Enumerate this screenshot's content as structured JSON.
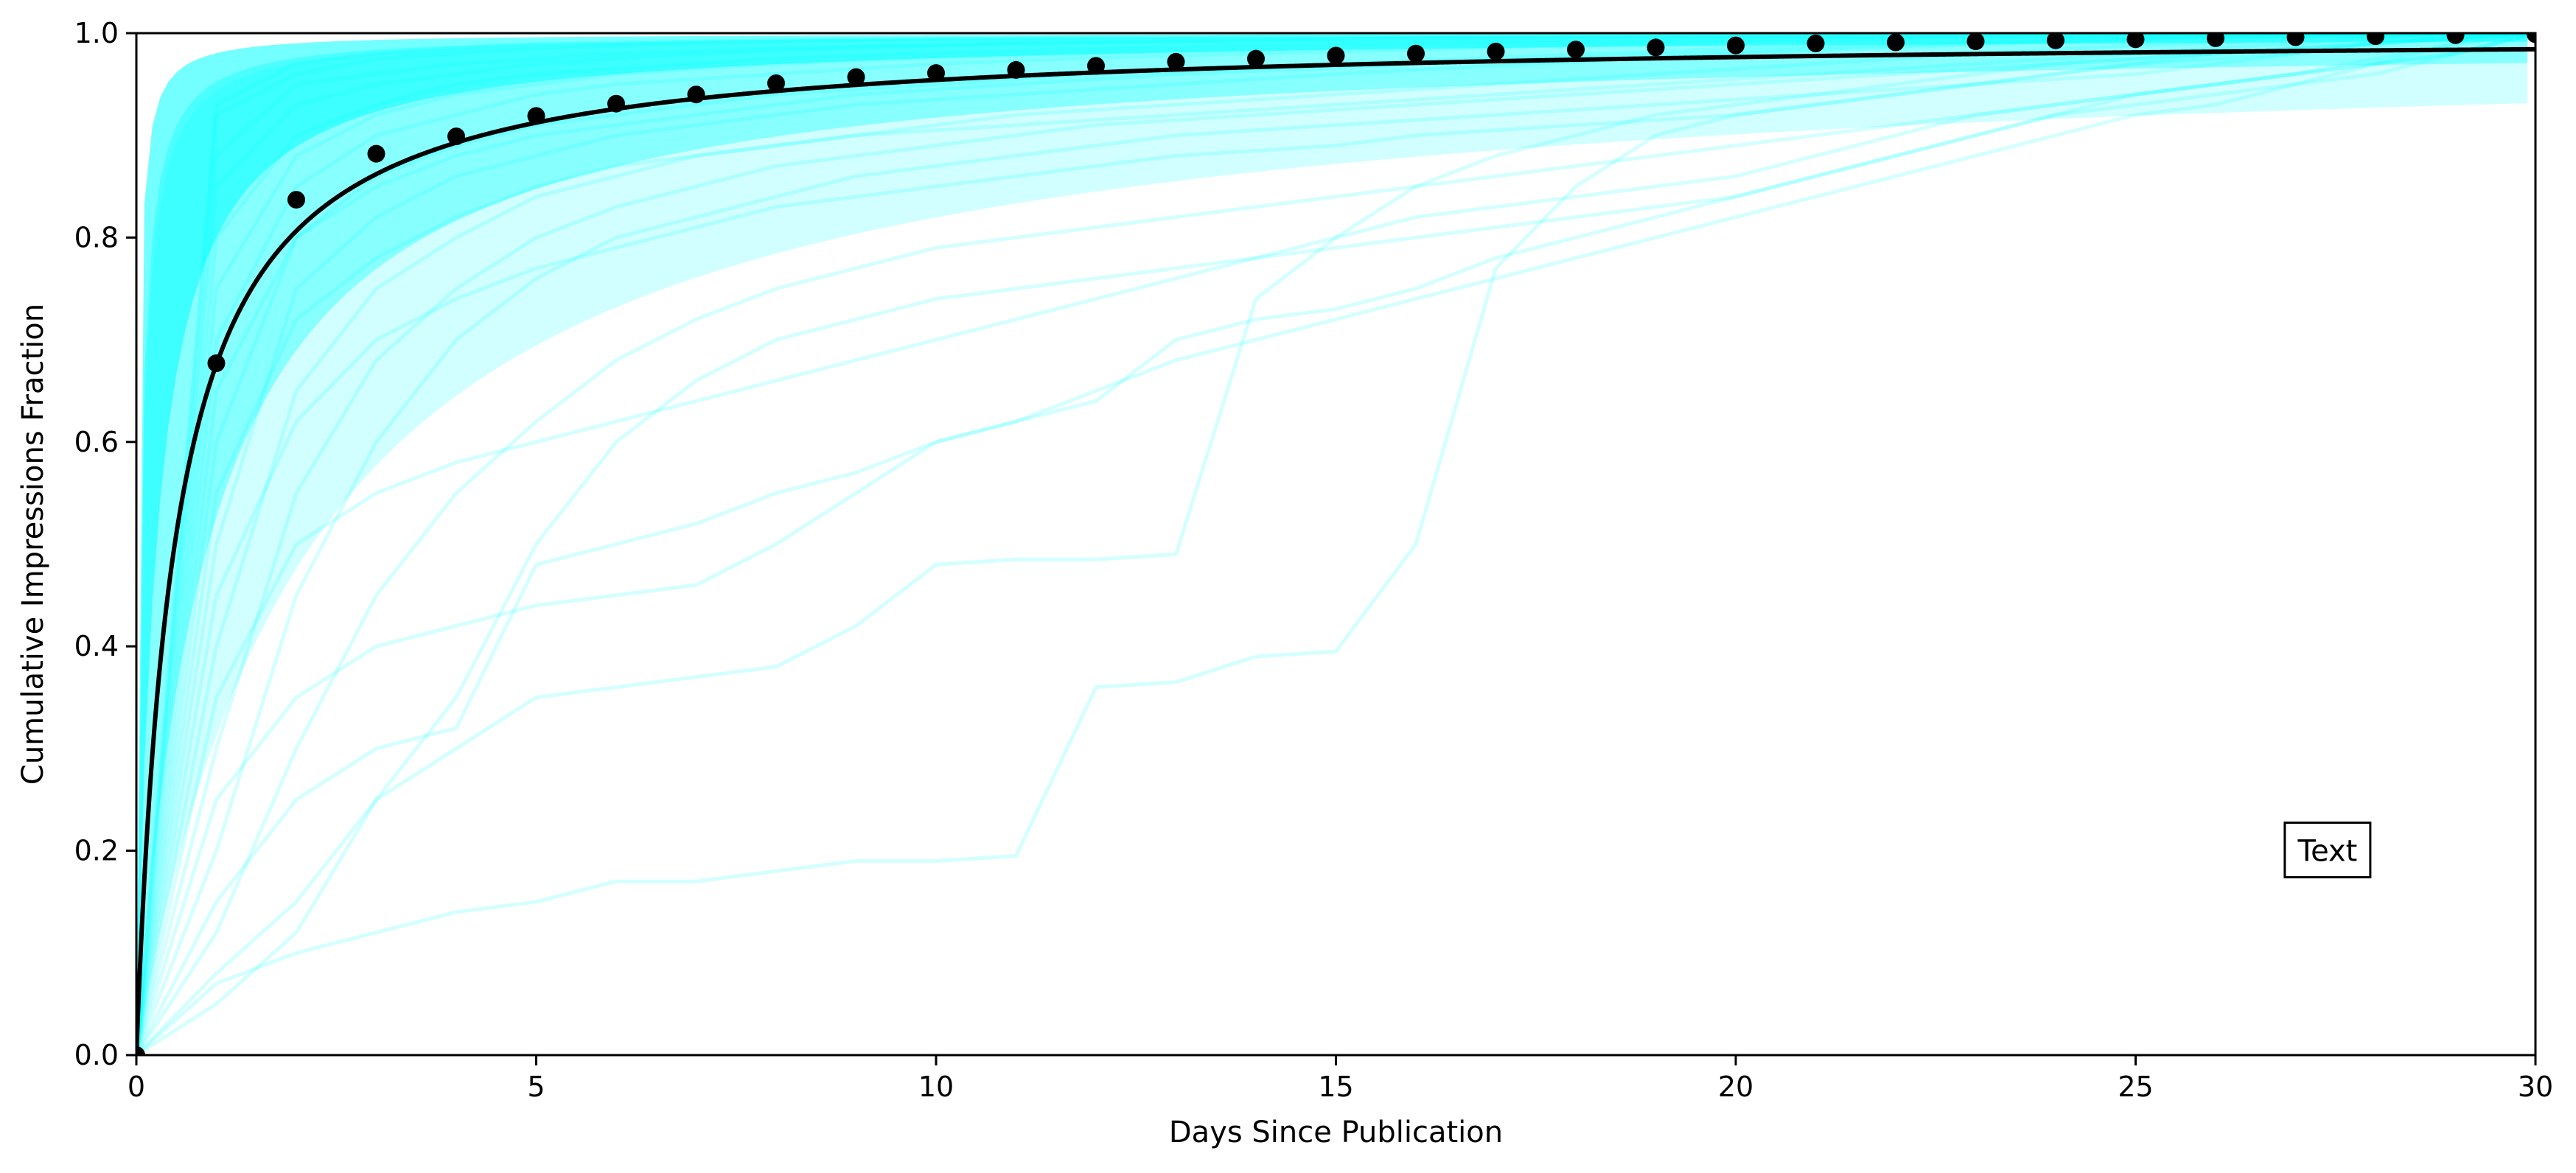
{
  "chart_data": {
    "type": "line",
    "xlabel": "Days Since Publication",
    "ylabel": "Cumulative Impressions Fraction",
    "xlim": [
      0,
      30
    ],
    "ylim": [
      0.0,
      1.0
    ],
    "x_ticks": [
      0,
      5,
      10,
      15,
      20,
      25,
      30
    ],
    "y_ticks": [
      0.0,
      0.2,
      0.4,
      0.6,
      0.8,
      1.0
    ],
    "x_tick_labels": [
      "0",
      "5",
      "10",
      "15",
      "20",
      "25",
      "30"
    ],
    "y_tick_labels": [
      "0.0",
      "0.2",
      "0.4",
      "0.6",
      "0.8",
      "1.0"
    ],
    "grid": false,
    "annotation": {
      "text": "Text",
      "x": 27.4,
      "y": 0.2
    },
    "individual_curves": {
      "color": "#00ffff",
      "opacity": 0.12,
      "x": [
        0,
        1,
        2,
        3,
        4,
        5,
        6,
        7,
        8,
        9,
        10,
        11,
        12,
        13,
        14,
        15,
        16,
        17,
        18,
        19,
        20,
        21,
        22,
        23,
        24,
        25,
        26,
        27,
        28,
        29,
        30
      ],
      "samples": [
        {
          "values": [
            0,
            0.93,
            0.97,
            0.98,
            0.985,
            0.99,
            0.99,
            0.992,
            0.993,
            0.994,
            0.995,
            0.995,
            0.996,
            0.996,
            0.997,
            0.997,
            0.997,
            0.998,
            0.998,
            0.998,
            0.998,
            0.999,
            0.999,
            0.999,
            0.999,
            0.999,
            0.999,
            1.0,
            1.0,
            1.0,
            1.0
          ]
        },
        {
          "values": [
            0,
            0.88,
            0.95,
            0.96,
            0.97,
            0.975,
            0.98,
            0.982,
            0.985,
            0.987,
            0.988,
            0.99,
            0.991,
            0.992,
            0.993,
            0.994,
            0.995,
            0.995,
            0.996,
            0.996,
            0.997,
            0.997,
            0.998,
            0.998,
            0.998,
            0.999,
            0.999,
            0.999,
            1.0,
            1.0,
            1.0
          ]
        },
        {
          "values": [
            0,
            0.8,
            0.9,
            0.93,
            0.95,
            0.96,
            0.965,
            0.97,
            0.975,
            0.978,
            0.98,
            0.982,
            0.984,
            0.986,
            0.988,
            0.99,
            0.991,
            0.992,
            0.993,
            0.994,
            0.995,
            0.996,
            0.996,
            0.997,
            0.997,
            0.998,
            0.998,
            0.999,
            0.999,
            1.0,
            1.0
          ]
        },
        {
          "values": [
            0,
            0.7,
            0.85,
            0.9,
            0.92,
            0.94,
            0.95,
            0.955,
            0.96,
            0.965,
            0.97,
            0.973,
            0.976,
            0.978,
            0.98,
            0.982,
            0.984,
            0.986,
            0.988,
            0.99,
            0.991,
            0.992,
            0.993,
            0.994,
            0.995,
            0.996,
            0.997,
            0.998,
            0.999,
            1.0,
            1.0
          ]
        },
        {
          "values": [
            0,
            0.6,
            0.8,
            0.86,
            0.89,
            0.91,
            0.92,
            0.93,
            0.94,
            0.945,
            0.95,
            0.955,
            0.96,
            0.963,
            0.966,
            0.97,
            0.973,
            0.976,
            0.979,
            0.982,
            0.985,
            0.987,
            0.989,
            0.991,
            0.993,
            0.995,
            0.996,
            0.997,
            0.998,
            0.999,
            1.0
          ]
        },
        {
          "values": [
            0,
            0.5,
            0.75,
            0.82,
            0.86,
            0.88,
            0.9,
            0.91,
            0.92,
            0.93,
            0.935,
            0.94,
            0.945,
            0.95,
            0.955,
            0.96,
            0.964,
            0.968,
            0.972,
            0.976,
            0.98,
            0.983,
            0.986,
            0.989,
            0.991,
            0.993,
            0.995,
            0.997,
            0.998,
            0.999,
            1.0
          ]
        },
        {
          "values": [
            0,
            0.4,
            0.65,
            0.75,
            0.8,
            0.84,
            0.86,
            0.88,
            0.89,
            0.9,
            0.91,
            0.92,
            0.925,
            0.93,
            0.935,
            0.94,
            0.945,
            0.95,
            0.955,
            0.96,
            0.965,
            0.97,
            0.975,
            0.98,
            0.984,
            0.988,
            0.991,
            0.994,
            0.996,
            0.998,
            1.0
          ]
        },
        {
          "values": [
            0,
            0.3,
            0.55,
            0.68,
            0.75,
            0.8,
            0.83,
            0.85,
            0.87,
            0.88,
            0.89,
            0.9,
            0.91,
            0.915,
            0.92,
            0.925,
            0.93,
            0.935,
            0.94,
            0.945,
            0.95,
            0.955,
            0.96,
            0.965,
            0.97,
            0.975,
            0.98,
            0.985,
            0.99,
            0.995,
            1.0
          ]
        },
        {
          "values": [
            0,
            0.2,
            0.45,
            0.6,
            0.7,
            0.76,
            0.8,
            0.82,
            0.84,
            0.86,
            0.87,
            0.88,
            0.89,
            0.9,
            0.905,
            0.91,
            0.915,
            0.92,
            0.925,
            0.93,
            0.935,
            0.94,
            0.945,
            0.95,
            0.955,
            0.96,
            0.97,
            0.98,
            0.99,
            0.995,
            1.0
          ]
        },
        {
          "values": [
            0,
            0.12,
            0.3,
            0.45,
            0.55,
            0.62,
            0.68,
            0.72,
            0.75,
            0.77,
            0.79,
            0.8,
            0.81,
            0.82,
            0.83,
            0.84,
            0.85,
            0.86,
            0.87,
            0.88,
            0.89,
            0.9,
            0.91,
            0.92,
            0.93,
            0.94,
            0.95,
            0.96,
            0.975,
            0.99,
            1.0
          ]
        },
        {
          "values": [
            0,
            0.08,
            0.15,
            0.25,
            0.35,
            0.5,
            0.6,
            0.66,
            0.7,
            0.72,
            0.74,
            0.75,
            0.76,
            0.77,
            0.78,
            0.79,
            0.8,
            0.81,
            0.82,
            0.83,
            0.84,
            0.86,
            0.88,
            0.9,
            0.92,
            0.94,
            0.95,
            0.96,
            0.97,
            0.98,
            1.0
          ]
        },
        {
          "values": [
            0,
            0.07,
            0.1,
            0.12,
            0.14,
            0.15,
            0.17,
            0.17,
            0.18,
            0.19,
            0.19,
            0.195,
            0.36,
            0.365,
            0.39,
            0.395,
            0.5,
            0.77,
            0.85,
            0.9,
            0.92,
            0.93,
            0.94,
            0.95,
            0.96,
            0.97,
            0.98,
            0.985,
            0.99,
            0.995,
            1.0
          ]
        },
        {
          "values": [
            0,
            0.05,
            0.12,
            0.25,
            0.3,
            0.35,
            0.36,
            0.37,
            0.38,
            0.42,
            0.48,
            0.485,
            0.485,
            0.49,
            0.74,
            0.8,
            0.85,
            0.88,
            0.9,
            0.92,
            0.93,
            0.94,
            0.95,
            0.96,
            0.97,
            0.975,
            0.98,
            0.985,
            0.99,
            0.995,
            1.0
          ]
        },
        {
          "values": [
            0,
            0.15,
            0.25,
            0.3,
            0.32,
            0.48,
            0.5,
            0.52,
            0.55,
            0.57,
            0.6,
            0.62,
            0.64,
            0.7,
            0.72,
            0.73,
            0.75,
            0.78,
            0.8,
            0.82,
            0.84,
            0.86,
            0.88,
            0.9,
            0.92,
            0.93,
            0.94,
            0.95,
            0.97,
            0.98,
            1.0
          ]
        },
        {
          "values": [
            0,
            0.25,
            0.35,
            0.4,
            0.42,
            0.44,
            0.45,
            0.46,
            0.5,
            0.55,
            0.6,
            0.62,
            0.65,
            0.68,
            0.7,
            0.72,
            0.74,
            0.76,
            0.78,
            0.8,
            0.82,
            0.84,
            0.86,
            0.88,
            0.9,
            0.92,
            0.93,
            0.95,
            0.96,
            0.98,
            1.0
          ]
        },
        {
          "values": [
            0,
            0.35,
            0.5,
            0.55,
            0.58,
            0.6,
            0.62,
            0.64,
            0.66,
            0.68,
            0.7,
            0.72,
            0.74,
            0.76,
            0.78,
            0.8,
            0.82,
            0.83,
            0.84,
            0.85,
            0.86,
            0.88,
            0.9,
            0.92,
            0.93,
            0.94,
            0.95,
            0.96,
            0.97,
            0.99,
            1.0
          ]
        },
        {
          "values": [
            0,
            0.45,
            0.62,
            0.7,
            0.74,
            0.77,
            0.79,
            0.81,
            0.83,
            0.84,
            0.85,
            0.86,
            0.87,
            0.88,
            0.885,
            0.89,
            0.9,
            0.905,
            0.91,
            0.915,
            0.92,
            0.93,
            0.94,
            0.95,
            0.96,
            0.97,
            0.975,
            0.98,
            0.99,
            0.995,
            1.0
          ]
        },
        {
          "values": [
            0,
            0.55,
            0.72,
            0.78,
            0.82,
            0.85,
            0.87,
            0.88,
            0.89,
            0.9,
            0.905,
            0.91,
            0.915,
            0.92,
            0.925,
            0.93,
            0.935,
            0.94,
            0.945,
            0.95,
            0.955,
            0.96,
            0.965,
            0.97,
            0.975,
            0.98,
            0.985,
            0.99,
            0.995,
            0.998,
            1.0
          ]
        },
        {
          "values": [
            0,
            0.65,
            0.8,
            0.85,
            0.88,
            0.9,
            0.91,
            0.92,
            0.93,
            0.94,
            0.945,
            0.95,
            0.955,
            0.96,
            0.963,
            0.966,
            0.97,
            0.973,
            0.976,
            0.979,
            0.982,
            0.985,
            0.988,
            0.99,
            0.992,
            0.994,
            0.996,
            0.997,
            0.998,
            0.999,
            1.0
          ]
        },
        {
          "values": [
            0,
            0.75,
            0.88,
            0.92,
            0.94,
            0.95,
            0.96,
            0.965,
            0.97,
            0.973,
            0.976,
            0.978,
            0.98,
            0.982,
            0.984,
            0.986,
            0.988,
            0.99,
            0.991,
            0.992,
            0.993,
            0.994,
            0.995,
            0.996,
            0.997,
            0.998,
            0.998,
            0.999,
            0.999,
            1.0,
            1.0
          ]
        },
        {
          "values": [
            0,
            0.85,
            0.93,
            0.95,
            0.96,
            0.97,
            0.975,
            0.98,
            0.983,
            0.986,
            0.988,
            0.99,
            0.991,
            0.992,
            0.993,
            0.994,
            0.995,
            0.996,
            0.996,
            0.997,
            0.997,
            0.998,
            0.998,
            0.998,
            0.999,
            0.999,
            0.999,
            1.0,
            1.0,
            1.0,
            1.0
          ]
        },
        {
          "values": [
            0,
            0.92,
            0.96,
            0.975,
            0.98,
            0.985,
            0.988,
            0.99,
            0.992,
            0.993,
            0.994,
            0.995,
            0.996,
            0.996,
            0.997,
            0.997,
            0.998,
            0.998,
            0.998,
            0.999,
            0.999,
            0.999,
            0.999,
            0.999,
            1.0,
            1.0,
            1.0,
            1.0,
            1.0,
            1.0,
            1.0
          ]
        }
      ]
    },
    "fit_curve": {
      "color": "#000000",
      "model": "hyperbolic saturation y = x / (x + 0.48)"
    },
    "mean_points": {
      "color": "#000000",
      "x": [
        0,
        1,
        2,
        3,
        4,
        5,
        6,
        7,
        8,
        9,
        10,
        11,
        12,
        13,
        14,
        15,
        16,
        17,
        18,
        19,
        20,
        21,
        22,
        23,
        24,
        25,
        26,
        27,
        28,
        29,
        30
      ],
      "y": [
        0.0,
        0.677,
        0.837,
        0.882,
        0.899,
        0.919,
        0.931,
        0.94,
        0.951,
        0.957,
        0.961,
        0.964,
        0.968,
        0.972,
        0.975,
        0.978,
        0.98,
        0.982,
        0.984,
        0.986,
        0.988,
        0.99,
        0.991,
        0.992,
        0.993,
        0.994,
        0.995,
        0.996,
        0.997,
        0.998,
        0.999
      ]
    }
  }
}
